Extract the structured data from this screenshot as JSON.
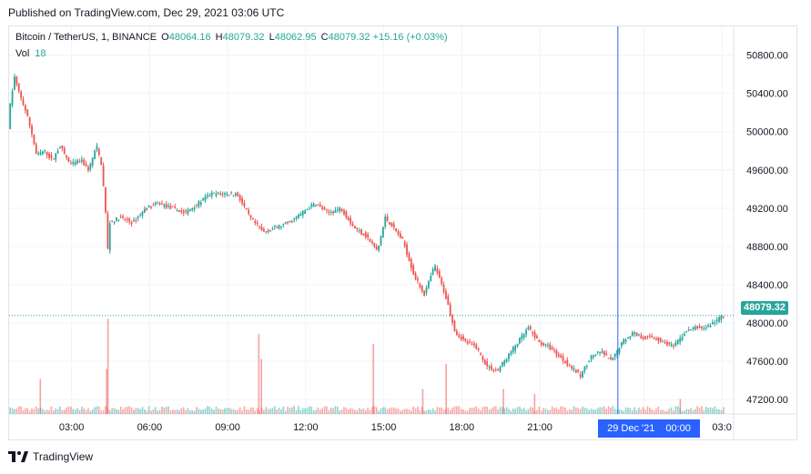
{
  "published": "Published on TradingView.com, Dec 29, 2021 03:06 UTC",
  "legend": {
    "symbol": "Bitcoin / TetherUS, 1, BINANCE",
    "o_label": "O",
    "o": "48064.16",
    "h_label": "H",
    "h": "48079.32",
    "l_label": "L",
    "l": "48062.95",
    "c_label": "C",
    "c": "48079.32",
    "change": "+15.16 (+0.03%)"
  },
  "volume": {
    "label": "Vol",
    "value": "18"
  },
  "price_tag": "48079.32",
  "crosshair_time": {
    "date": "29 Dec '21",
    "time": "00:00"
  },
  "logo_text": "TradingView",
  "colors": {
    "up": "#26a69a",
    "down": "#ef5350",
    "crosshair": "#2962ff",
    "grid": "#f0f3fa"
  },
  "chart_data": {
    "type": "candlestick",
    "title": "Bitcoin / TetherUS, 1, BINANCE",
    "ylim": [
      47050,
      51100
    ],
    "y_ticks": [
      50800,
      50400,
      50000,
      49600,
      49200,
      48800,
      48400,
      48000,
      47600,
      47200
    ],
    "y_tick_labels": [
      "50800.00",
      "50400.00",
      "50000.00",
      "49600.00",
      "49200.00",
      "48800.00",
      "48400.00",
      "48000.00",
      "47600.00",
      "47200.00"
    ],
    "x_ticks": [
      2.4,
      5.4,
      8.4,
      11.4,
      14.4,
      17.4,
      20.4,
      24.4,
      27.4
    ],
    "x_tick_labels": [
      "03:00",
      "06:00",
      "09:00",
      "12:00",
      "15:00",
      "18:00",
      "21:00",
      "00:00",
      "03:0"
    ],
    "xlim": [
      0,
      27.85
    ],
    "last_price": 48079.32,
    "crosshair_x": 23.4,
    "price_path": [
      [
        0,
        50050
      ],
      [
        0.1,
        50320
      ],
      [
        0.25,
        50570
      ],
      [
        0.4,
        50420
      ],
      [
        0.7,
        50200
      ],
      [
        0.9,
        50000
      ],
      [
        1.1,
        49750
      ],
      [
        1.4,
        49800
      ],
      [
        1.7,
        49700
      ],
      [
        2.0,
        49850
      ],
      [
        2.4,
        49650
      ],
      [
        2.8,
        49700
      ],
      [
        3.1,
        49600
      ],
      [
        3.4,
        49850
      ],
      [
        3.6,
        49650
      ],
      [
        3.75,
        49150
      ],
      [
        3.85,
        48700
      ],
      [
        3.9,
        49050
      ],
      [
        4.3,
        49100
      ],
      [
        4.8,
        49050
      ],
      [
        5.3,
        49200
      ],
      [
        5.8,
        49250
      ],
      [
        6.3,
        49200
      ],
      [
        6.8,
        49150
      ],
      [
        7.3,
        49250
      ],
      [
        7.8,
        49350
      ],
      [
        8.3,
        49350
      ],
      [
        8.8,
        49350
      ],
      [
        9.3,
        49100
      ],
      [
        9.8,
        48950
      ],
      [
        10.3,
        49000
      ],
      [
        10.8,
        49050
      ],
      [
        11.3,
        49150
      ],
      [
        11.8,
        49250
      ],
      [
        12.3,
        49150
      ],
      [
        12.8,
        49200
      ],
      [
        13.3,
        49000
      ],
      [
        13.8,
        48900
      ],
      [
        14.2,
        48750
      ],
      [
        14.5,
        49100
      ],
      [
        14.8,
        49000
      ],
      [
        15.2,
        48850
      ],
      [
        15.6,
        48500
      ],
      [
        16.0,
        48300
      ],
      [
        16.4,
        48600
      ],
      [
        16.8,
        48300
      ],
      [
        17.2,
        47900
      ],
      [
        17.6,
        47800
      ],
      [
        18.0,
        47750
      ],
      [
        18.4,
        47550
      ],
      [
        18.8,
        47500
      ],
      [
        19.2,
        47650
      ],
      [
        19.6,
        47800
      ],
      [
        20.0,
        47950
      ],
      [
        20.4,
        47800
      ],
      [
        20.8,
        47750
      ],
      [
        21.2,
        47650
      ],
      [
        21.6,
        47550
      ],
      [
        22.0,
        47450
      ],
      [
        22.4,
        47650
      ],
      [
        22.8,
        47700
      ],
      [
        23.2,
        47600
      ],
      [
        23.6,
        47800
      ],
      [
        24.0,
        47900
      ],
      [
        24.4,
        47850
      ],
      [
        24.8,
        47850
      ],
      [
        25.2,
        47800
      ],
      [
        25.6,
        47750
      ],
      [
        26.0,
        47900
      ],
      [
        26.4,
        47950
      ],
      [
        26.8,
        47950
      ],
      [
        27.2,
        48020
      ],
      [
        27.5,
        48079.32
      ]
    ],
    "volume_spikes": [
      [
        3.8,
        0.95
      ],
      [
        9.6,
        0.8
      ],
      [
        9.7,
        0.55
      ],
      [
        14.0,
        0.7
      ],
      [
        16.8,
        0.5
      ],
      [
        3.75,
        0.45
      ],
      [
        1.2,
        0.35
      ],
      [
        15.9,
        0.25
      ],
      [
        19.0,
        0.25
      ],
      [
        20.2,
        0.2
      ],
      [
        25.8,
        0.15
      ]
    ]
  }
}
